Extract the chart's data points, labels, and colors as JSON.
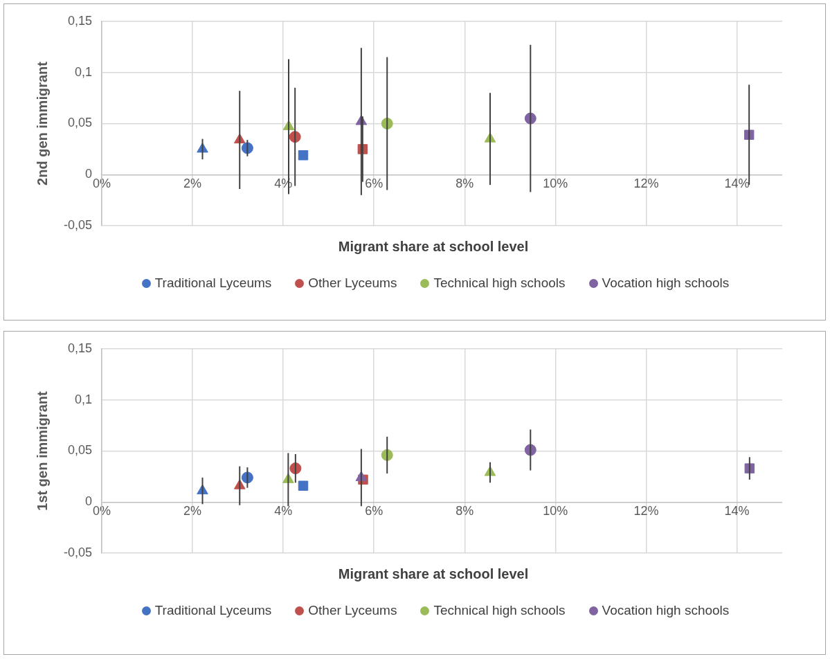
{
  "chart_data": [
    {
      "type": "scatter",
      "ylabel": "2nd gen immigrant",
      "xlabel": "Migrant share at school level",
      "xlim": [
        0,
        15
      ],
      "xticks": [
        {
          "value": 0,
          "label": "0%"
        },
        {
          "value": 2,
          "label": "2%"
        },
        {
          "value": 4,
          "label": "4%"
        },
        {
          "value": 6,
          "label": "6%"
        },
        {
          "value": 8,
          "label": "8%"
        },
        {
          "value": 10,
          "label": "10%"
        },
        {
          "value": 12,
          "label": "12%"
        },
        {
          "value": 14,
          "label": "14%"
        }
      ],
      "ylim": [
        -0.05,
        0.15
      ],
      "yticks": [
        {
          "value": -0.05,
          "label": "-0,05"
        },
        {
          "value": 0,
          "label": "0"
        },
        {
          "value": 0.05,
          "label": "0,05"
        },
        {
          "value": 0.1,
          "label": "0,1"
        },
        {
          "value": 0.15,
          "label": "0,15"
        }
      ],
      "grid": true,
      "legend": "bottom",
      "series": [
        {
          "name": "Traditional Lyceums",
          "color": "#4472c4",
          "marker": "circle",
          "x": [
            3.21
          ],
          "values": [
            0.026
          ],
          "errors": [
            0.008
          ]
        },
        {
          "name": "Other Lyceums",
          "color": "#c0504d",
          "marker": "circle",
          "x": [
            4.26
          ],
          "values": [
            0.037
          ],
          "errors": [
            0.048
          ]
        },
        {
          "name": "Technical high schools",
          "color": "#9bbb59",
          "marker": "circle",
          "x": [
            6.29
          ],
          "values": [
            0.05
          ],
          "errors": [
            0.065
          ]
        },
        {
          "name": "Vocation high schools",
          "color": "#8064a2",
          "marker": "circle",
          "x": [
            9.45
          ],
          "values": [
            0.055
          ],
          "errors": [
            0.072
          ]
        },
        {
          "color": "#4472c4",
          "marker": "triangle",
          "x": [
            2.22
          ],
          "values": [
            0.025
          ],
          "errors": [
            0.01
          ]
        },
        {
          "color": "#c0504d",
          "marker": "triangle",
          "x": [
            3.04
          ],
          "values": [
            0.034
          ],
          "errors": [
            0.048
          ]
        },
        {
          "color": "#9bbb59",
          "marker": "triangle",
          "x": [
            4.12,
            8.56
          ],
          "values": [
            0.047,
            0.035
          ],
          "errors": [
            0.066,
            0.045
          ]
        },
        {
          "color": "#8064a2",
          "marker": "triangle",
          "x": [
            5.72
          ],
          "values": [
            0.052
          ],
          "errors": [
            0.072
          ]
        },
        {
          "color": "#4472c4",
          "marker": "square",
          "x": [
            4.44
          ],
          "values": [
            0.019
          ]
        },
        {
          "color": "#c0504d",
          "marker": "square",
          "x": [
            5.75
          ],
          "values": [
            0.025
          ],
          "errors": [
            0.032
          ]
        },
        {
          "color": "#8064a2",
          "marker": "square",
          "x": [
            14.27
          ],
          "values": [
            0.039
          ],
          "errors": [
            0.049
          ]
        }
      ]
    },
    {
      "type": "scatter",
      "ylabel": "1st gen immigrant",
      "xlabel": "Migrant share at school level",
      "xlim": [
        0,
        15
      ],
      "xticks": [
        {
          "value": 0,
          "label": "0%"
        },
        {
          "value": 2,
          "label": "2%"
        },
        {
          "value": 4,
          "label": "4%"
        },
        {
          "value": 6,
          "label": "6%"
        },
        {
          "value": 8,
          "label": "8%"
        },
        {
          "value": 10,
          "label": "10%"
        },
        {
          "value": 12,
          "label": "12%"
        },
        {
          "value": 14,
          "label": "14%"
        }
      ],
      "ylim": [
        -0.05,
        0.15
      ],
      "yticks": [
        {
          "value": -0.05,
          "label": "-0,05"
        },
        {
          "value": 0,
          "label": "0"
        },
        {
          "value": 0.05,
          "label": "0,05"
        },
        {
          "value": 0.1,
          "label": "0,1"
        },
        {
          "value": 0.15,
          "label": "0,15"
        }
      ],
      "grid": true,
      "legend": "bottom",
      "series": [
        {
          "name": "Traditional Lyceums",
          "color": "#4472c4",
          "marker": "circle",
          "x": [
            3.21
          ],
          "values": [
            0.024
          ],
          "errors": [
            0.01
          ]
        },
        {
          "name": "Other Lyceums",
          "color": "#c0504d",
          "marker": "circle",
          "x": [
            4.27
          ],
          "values": [
            0.033
          ],
          "errors": [
            0.014
          ]
        },
        {
          "name": "Technical high schools",
          "color": "#9bbb59",
          "marker": "circle",
          "x": [
            6.29
          ],
          "values": [
            0.046
          ],
          "errors": [
            0.018
          ]
        },
        {
          "name": "Vocation high schools",
          "color": "#8064a2",
          "marker": "circle",
          "x": [
            9.45
          ],
          "values": [
            0.051
          ],
          "errors": [
            0.02
          ]
        },
        {
          "color": "#4472c4",
          "marker": "triangle",
          "x": [
            2.22
          ],
          "values": [
            0.011
          ],
          "errors": [
            0.013
          ]
        },
        {
          "color": "#c0504d",
          "marker": "triangle",
          "x": [
            3.04
          ],
          "values": [
            0.016
          ],
          "errors": [
            0.019
          ]
        },
        {
          "color": "#9bbb59",
          "marker": "triangle",
          "x": [
            4.11,
            8.56
          ],
          "values": [
            0.022,
            0.029
          ],
          "errors": [
            0.026,
            0.01
          ]
        },
        {
          "color": "#8064a2",
          "marker": "triangle",
          "x": [
            5.72
          ],
          "values": [
            0.024
          ],
          "errors": [
            0.028
          ]
        },
        {
          "color": "#4472c4",
          "marker": "square",
          "x": [
            4.44
          ],
          "values": [
            0.016
          ]
        },
        {
          "color": "#c0504d",
          "marker": "square",
          "x": [
            5.76
          ],
          "values": [
            0.022
          ]
        },
        {
          "color": "#8064a2",
          "marker": "square",
          "x": [
            14.28
          ],
          "values": [
            0.033
          ],
          "errors": [
            0.011
          ]
        }
      ]
    }
  ]
}
